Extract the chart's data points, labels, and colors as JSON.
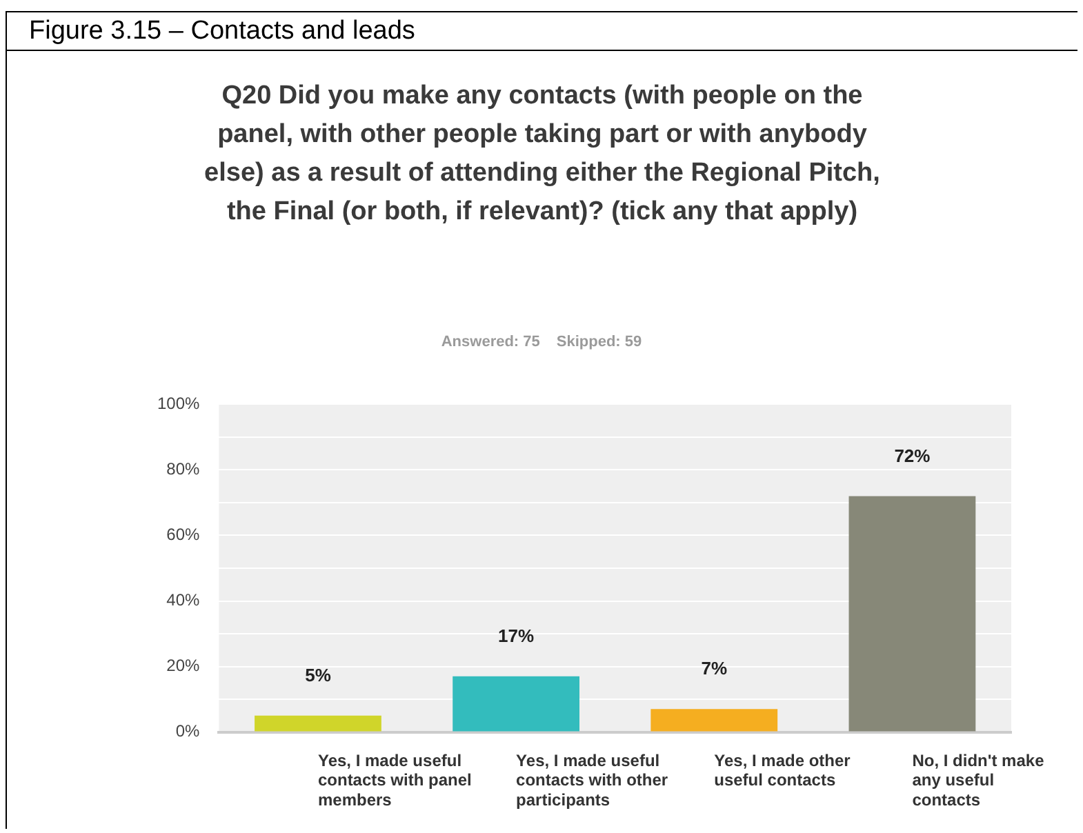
{
  "chart_data": {
    "type": "bar",
    "title": "Figure 3.15 – Contacts and leads",
    "subtitle": "Q20 Did you make any contacts (with people on the panel, with other people taking part or with anybody else) as a result of attending either the Regional Pitch, the Final (or both, if relevant)? (tick any that apply)",
    "annotations": [
      "Answered: 75",
      "Skipped: 59"
    ],
    "categories": [
      "Yes, I made useful contacts with panel members",
      "Yes, I made useful contacts with other participants",
      "Yes, I made other useful contacts",
      "No, I didn't make any useful contacts"
    ],
    "values": [
      5,
      17,
      7,
      72
    ],
    "colors": [
      "#d0d52a",
      "#33bcbd",
      "#f5ae20",
      "#878878"
    ],
    "value_labels": [
      "5%",
      "17%",
      "7%",
      "72%"
    ],
    "ylim": [
      0,
      100
    ],
    "yticks": [
      {
        "value": 0,
        "label": "0%"
      },
      {
        "value": 10,
        "label": null
      },
      {
        "value": 20,
        "label": "20%"
      },
      {
        "value": 30,
        "label": null
      },
      {
        "value": 40,
        "label": "40%"
      },
      {
        "value": 50,
        "label": null
      },
      {
        "value": 60,
        "label": "60%"
      },
      {
        "value": 70,
        "label": null
      },
      {
        "value": 80,
        "label": "80%"
      },
      {
        "value": 90,
        "label": null
      },
      {
        "value": 100,
        "label": "100%"
      }
    ],
    "grid": true,
    "legend": false
  }
}
